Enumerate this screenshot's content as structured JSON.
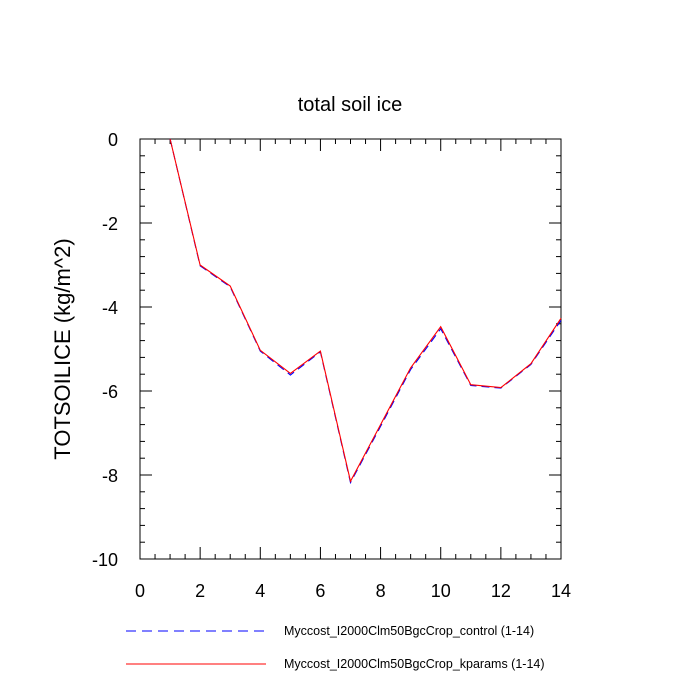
{
  "chart_data": {
    "type": "line",
    "title": "total soil ice",
    "ylabel": "TOTSOILICE  (kg/m^2)",
    "xlabel": "",
    "xlim": [
      0,
      14
    ],
    "ylim": [
      -10,
      0
    ],
    "x_ticks": [
      0,
      2,
      4,
      6,
      8,
      10,
      12,
      14
    ],
    "y_ticks": [
      0,
      -2,
      -4,
      -6,
      -8,
      -10
    ],
    "x_tick_labels": [
      "0",
      "2",
      "4",
      "6",
      "8",
      "10",
      "12",
      "14"
    ],
    "y_tick_labels": [
      "0",
      "-2",
      "-4",
      "-6",
      "-8",
      "-10"
    ],
    "grid": false,
    "legend_position": "bottom",
    "x": [
      1,
      2,
      3,
      4,
      5,
      6,
      7,
      8,
      9,
      10,
      11,
      12,
      13,
      14
    ],
    "series": [
      {
        "name": "Myccost_I2000Clm50BgcCrop_control (1-14)",
        "color": "#0000ff",
        "dash": "dashed",
        "values": [
          0,
          -3.02,
          -3.52,
          -5.05,
          -5.62,
          -5.07,
          -8.18,
          -6.84,
          -5.49,
          -4.52,
          -5.87,
          -5.93,
          -5.37,
          -4.32
        ]
      },
      {
        "name": "Myccost_I2000Clm50BgcCrop_kparams (1-14)",
        "color": "#ff0000",
        "dash": "solid",
        "values": [
          0,
          -3.0,
          -3.5,
          -5.03,
          -5.58,
          -5.05,
          -8.15,
          -6.8,
          -5.45,
          -4.47,
          -5.85,
          -5.92,
          -5.35,
          -4.27
        ]
      }
    ]
  }
}
